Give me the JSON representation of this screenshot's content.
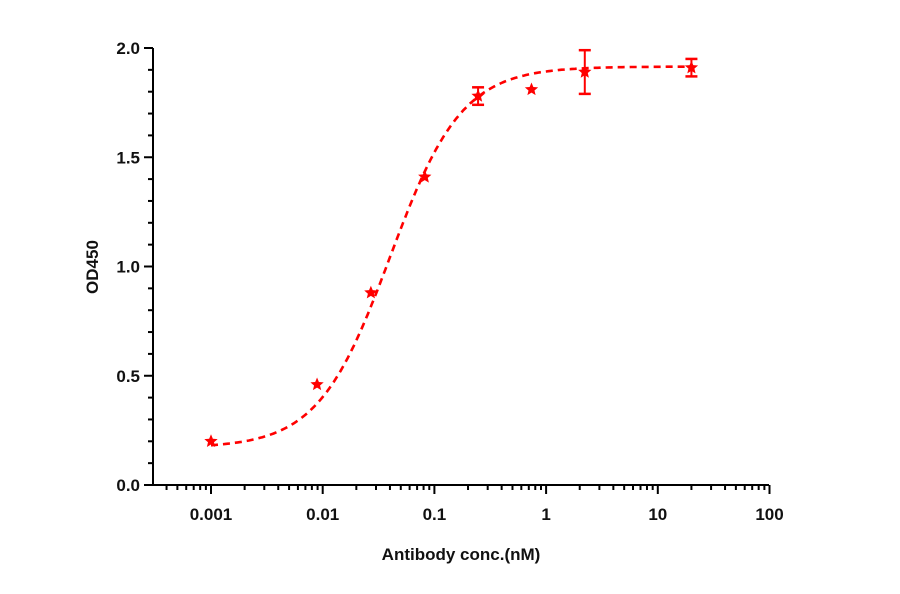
{
  "chart_data": {
    "type": "scatter",
    "title": "",
    "xlabel": "Antibody conc.(nM)",
    "ylabel": "OD450",
    "xscale": "log",
    "xlim": [
      0.0003,
      100
    ],
    "ylim": [
      0,
      2.0
    ],
    "x_ticks": [
      0.001,
      0.01,
      0.1,
      1,
      10,
      100
    ],
    "x_tick_labels": [
      "0.001",
      "0.01",
      "0.1",
      "1",
      "10",
      "100"
    ],
    "y_ticks": [
      0.0,
      0.5,
      1.0,
      1.5,
      2.0
    ],
    "y_tick_labels": [
      "0.0",
      "0.5",
      "1.0",
      "1.5",
      "2.0"
    ],
    "y_minor_step": 0.1,
    "grid": false,
    "legend": null,
    "series": [
      {
        "name": "OD450",
        "color": "#ff0000",
        "marker": "star",
        "fit": "4PL dashed curve",
        "x": [
          0.001,
          0.0089,
          0.027,
          0.082,
          0.246,
          0.74,
          2.22,
          20
        ],
        "y": [
          0.2,
          0.46,
          0.88,
          1.41,
          1.78,
          1.81,
          1.89,
          1.91
        ],
        "error": [
          0,
          0,
          0,
          0,
          0.04,
          0,
          0.1,
          0.04
        ]
      }
    ]
  }
}
